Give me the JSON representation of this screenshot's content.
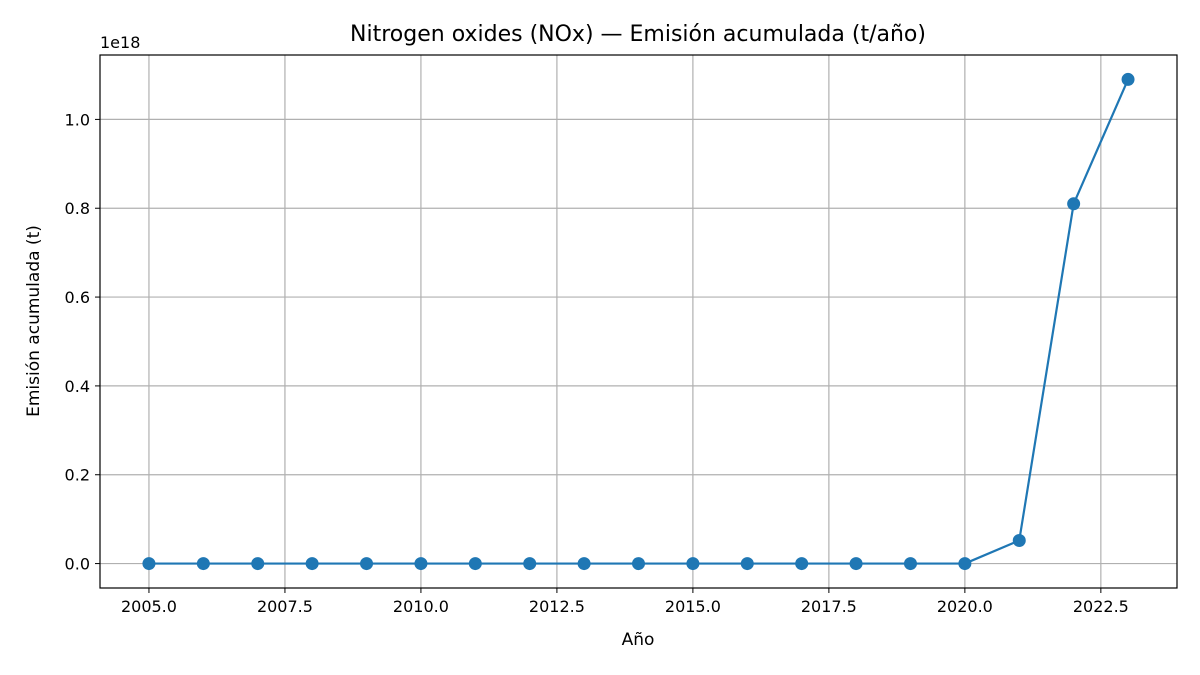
{
  "chart_data": {
    "type": "line",
    "title": "Nitrogen oxides (NOx) — Emisión acumulada (t/año)",
    "xlabel": "Año",
    "ylabel": "Emisión acumulada (t)",
    "y_offset_label": "1e18",
    "y_scale_factor": 1e+18,
    "xlim": [
      2004.1,
      2023.9
    ],
    "ylim": [
      -0.055,
      1.145
    ],
    "x_ticks": [
      2005.0,
      2007.5,
      2010.0,
      2012.5,
      2015.0,
      2017.5,
      2020.0,
      2022.5
    ],
    "x_tick_labels": [
      "2005.0",
      "2007.5",
      "2010.0",
      "2012.5",
      "2015.0",
      "2017.5",
      "2020.0",
      "2022.5"
    ],
    "y_ticks": [
      0.0,
      0.2,
      0.4,
      0.6,
      0.8,
      1.0
    ],
    "y_tick_labels": [
      "0.0",
      "0.2",
      "0.4",
      "0.6",
      "0.8",
      "1.0"
    ],
    "grid": true,
    "color": "#1f77b4",
    "marker": "circle",
    "x": [
      2005,
      2006,
      2007,
      2008,
      2009,
      2010,
      2011,
      2012,
      2013,
      2014,
      2015,
      2016,
      2017,
      2018,
      2019,
      2020,
      2021,
      2022,
      2023
    ],
    "y": [
      0,
      0,
      0,
      0,
      0,
      0,
      0,
      0,
      0,
      0,
      0,
      0,
      0,
      0,
      0,
      0,
      0.052,
      0.81,
      1.09
    ]
  }
}
